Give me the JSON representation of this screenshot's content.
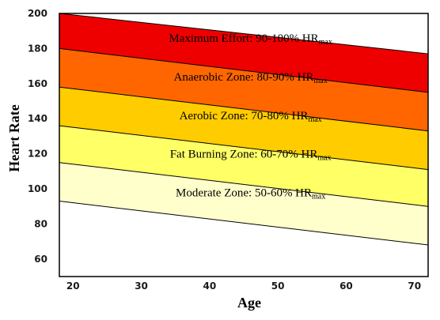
{
  "chart_data": {
    "type": "area",
    "title": "",
    "xlabel": "Age",
    "ylabel": "Heart Rate",
    "xlim": [
      18,
      72
    ],
    "ylim": [
      50,
      200
    ],
    "x_ticks": [
      20,
      30,
      40,
      50,
      60,
      70
    ],
    "y_ticks": [
      60,
      80,
      100,
      120,
      140,
      160,
      180,
      200
    ],
    "x": [
      18,
      72
    ],
    "boundaries": [
      {
        "name": "50%",
        "values": [
          93,
          68
        ]
      },
      {
        "name": "60%",
        "values": [
          115,
          90
        ]
      },
      {
        "name": "70%",
        "values": [
          136,
          111
        ]
      },
      {
        "name": "80%",
        "values": [
          158,
          133
        ]
      },
      {
        "name": "90%",
        "values": [
          180,
          155
        ]
      },
      {
        "name": "100%",
        "values": [
          202,
          177
        ]
      }
    ],
    "zones": [
      {
        "label": "Moderate Zone: 50-60% HR",
        "sub": "max",
        "lower": 0,
        "upper": 1,
        "color": "#FFFFCC",
        "label_x": 46,
        "label_y": 98
      },
      {
        "label": "Fat Burning Zone: 60-70% HR",
        "sub": "max",
        "lower": 1,
        "upper": 2,
        "color": "#FFFF66",
        "label_x": 46,
        "label_y": 120
      },
      {
        "label": "Aerobic Zone: 70-80% HR",
        "sub": "max",
        "lower": 2,
        "upper": 3,
        "color": "#FFCC00",
        "label_x": 46,
        "label_y": 142
      },
      {
        "label": "Anaerobic Zone: 80-90% HR",
        "sub": "max",
        "lower": 3,
        "upper": 4,
        "color": "#FF6600",
        "label_x": 46,
        "label_y": 164
      },
      {
        "label": "Maximum Effort: 90-100% HR",
        "sub": "max",
        "lower": 4,
        "upper": 5,
        "color": "#EE0000",
        "label_x": 46,
        "label_y": 186
      }
    ],
    "grid": false,
    "legend": "none"
  }
}
